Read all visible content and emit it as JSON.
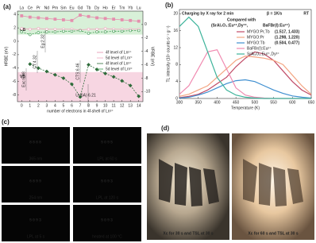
{
  "chart_data": [
    {
      "type": "line",
      "panel_label": "(a)",
      "x": [
        0,
        1,
        2,
        3,
        4,
        5,
        6,
        7,
        8,
        9,
        10,
        11,
        12,
        13,
        14
      ],
      "top_categories": [
        "La",
        "Ce",
        "Pr",
        "Nd",
        "Pm",
        "Sm",
        "Eu",
        "Gd",
        "Tb",
        "Dy",
        "Ho",
        "Er",
        "Tm",
        "Yb",
        "Lu"
      ],
      "xlabel": "number of electrons in 4f-shell of Ln³⁺",
      "ylabel": "HRBE (eV)",
      "y2label": "VRBE (eV)",
      "xlim": [
        -0.5,
        14.5
      ],
      "xticks": [
        0,
        1,
        2,
        3,
        4,
        5,
        6,
        7,
        8,
        9,
        10,
        11,
        12,
        13,
        14
      ],
      "ylim": [
        -9,
        4.5
      ],
      "yticks": [
        -8,
        -6,
        -4,
        -2,
        0,
        2,
        4
      ],
      "y2lim": [
        -11.5,
        2
      ],
      "y2ticks": [
        -10,
        -8,
        -6,
        -4,
        -2,
        0
      ],
      "band_edges": [
        {
          "label": "CB",
          "value": 1.0,
          "color": "#d8f0d8"
        },
        {
          "label": "VB",
          "value": -4.6,
          "color": "#f7d6e2"
        }
      ],
      "annotations": [
        "Exc:6.98",
        "CT:4.32",
        "Eg:2.32",
        "CTS:6.46",
        "U (6A) 6.21"
      ],
      "legend": "right",
      "series": [
        {
          "name": "4f level of Ln²⁺",
          "color": "#e58fae",
          "marker": "square",
          "dash": false,
          "values": [
            3.8,
            3.6,
            3.5,
            3.4,
            3.3,
            3.2,
            3.1,
            3.9,
            3.7,
            3.5,
            3.4,
            3.3,
            3.2,
            3.1,
            3.0
          ]
        },
        {
          "name": "5d level of Ln²⁺",
          "color": "#f0a8c0",
          "marker": "circle",
          "dash": false,
          "values": [
            1.9,
            1.8,
            1.9,
            1.8,
            1.8,
            1.8,
            1.8,
            1.7,
            1.8,
            1.8,
            1.9,
            1.8,
            1.8,
            1.8,
            1.8
          ]
        },
        {
          "name": "4f level of Ln³⁺",
          "color": "#2e6b3a",
          "marker": "diamond",
          "dash": true,
          "values": [
            null,
            -3.4,
            -4.0,
            -4.5,
            -5.0,
            -5.5,
            -6.4,
            -8.3,
            -3.5,
            -4.2,
            -4.8,
            -5.3,
            -5.9,
            -6.6,
            -8.2
          ]
        },
        {
          "name": "5d level of Ln³⁺",
          "color": "#3c9a50",
          "marker": "circle",
          "dash": true,
          "values": [
            1.4,
            1.0,
            1.3,
            1.4,
            1.4,
            1.5,
            1.5,
            1.6,
            1.2,
            1.4,
            1.4,
            1.5,
            1.5,
            1.6,
            1.6
          ]
        }
      ]
    },
    {
      "type": "line",
      "panel_label": "(b)",
      "x": [
        300,
        325,
        350,
        375,
        400,
        425,
        450,
        475,
        500,
        525,
        550,
        575,
        600,
        625,
        650
      ],
      "xlabel": "Temperature (K)",
      "ylabel": "TL intensity (10⁵ counts·s⁻¹·g⁻¹)",
      "xlim": [
        300,
        650
      ],
      "xticks": [
        300,
        350,
        400,
        450,
        500,
        550,
        600,
        650
      ],
      "ylim": [
        0,
        21
      ],
      "yticks": [
        0,
        4,
        8,
        12,
        16,
        20
      ],
      "notes": [
        "Charging by X ray for 2 min",
        "β = 1K/s",
        "RT"
      ],
      "legend_title": "Compared with",
      "legend_subtitle": [
        "(SrAl₂O₄:Eu²⁺,Dy³⁺,",
        "BaFBr(I):Eu²⁺)"
      ],
      "legend": "right",
      "series": [
        {
          "name": "MYGO:Pr,Tb",
          "annotation": "(1.517, 1.433)",
          "color": "#c04a66",
          "values": [
            0.2,
            0.5,
            1,
            2,
            3.5,
            5,
            7.5,
            9.5,
            11,
            10.5,
            9,
            6.5,
            4,
            2,
            0.8
          ]
        },
        {
          "name": "MYGO:Pr",
          "annotation": "(1.298, 1.220)",
          "color": "#f4a582",
          "values": [
            0.5,
            1,
            2,
            3,
            5,
            7,
            9,
            10,
            9.8,
            9.5,
            9,
            8,
            5.5,
            3,
            1
          ]
        },
        {
          "name": "MYGO:Tb",
          "annotation": "(0.504, 0.477)",
          "color": "#3f8fd0",
          "values": [
            0.1,
            0.3,
            0.8,
            1.5,
            2.5,
            3.5,
            4.2,
            4.4,
            4,
            3,
            2,
            1.2,
            0.6,
            0.3,
            0.1
          ]
        },
        {
          "name": "BaFBr(I):Eu²⁺",
          "color": "#f08ab0",
          "values": [
            1,
            3,
            7,
            11,
            11.5,
            7,
            2.5,
            0.8,
            0.3,
            0.1,
            0,
            0,
            0,
            0,
            0
          ]
        },
        {
          "name": "SrAl₂O₄:Eu²⁺,Dy³⁺",
          "color": "#3cb39a",
          "values": [
            17,
            19.2,
            17,
            11,
            5,
            2,
            0.8,
            0.3,
            0.1,
            0,
            0,
            0,
            0,
            0,
            0
          ]
        }
      ]
    }
  ],
  "panel_c": {
    "label": "(c)",
    "tiles": [
      {
        "display": "8888",
        "caption": "365 nm",
        "color": "#3a4dff"
      },
      {
        "display": "5095",
        "caption": "LPL at 60 s",
        "color": "#5a5a5a"
      },
      {
        "display": "6899",
        "caption": "254 nm",
        "color": "#ff7a5a"
      },
      {
        "display": "5093",
        "caption": "LPL at 120 s",
        "color": "#4a4a4a"
      },
      {
        "display": "5093",
        "caption": "LPL at 5 s",
        "color": "#ff5a3a"
      },
      {
        "display": "5093",
        "caption": "heated at 100 °C",
        "color": "#f07040"
      }
    ]
  },
  "panel_d": {
    "label": "(d)",
    "images": [
      {
        "caption": "Xc for  30 s and TSL at 30 s"
      },
      {
        "caption": "Xc for  60 s and TSL at 30 s"
      }
    ]
  }
}
